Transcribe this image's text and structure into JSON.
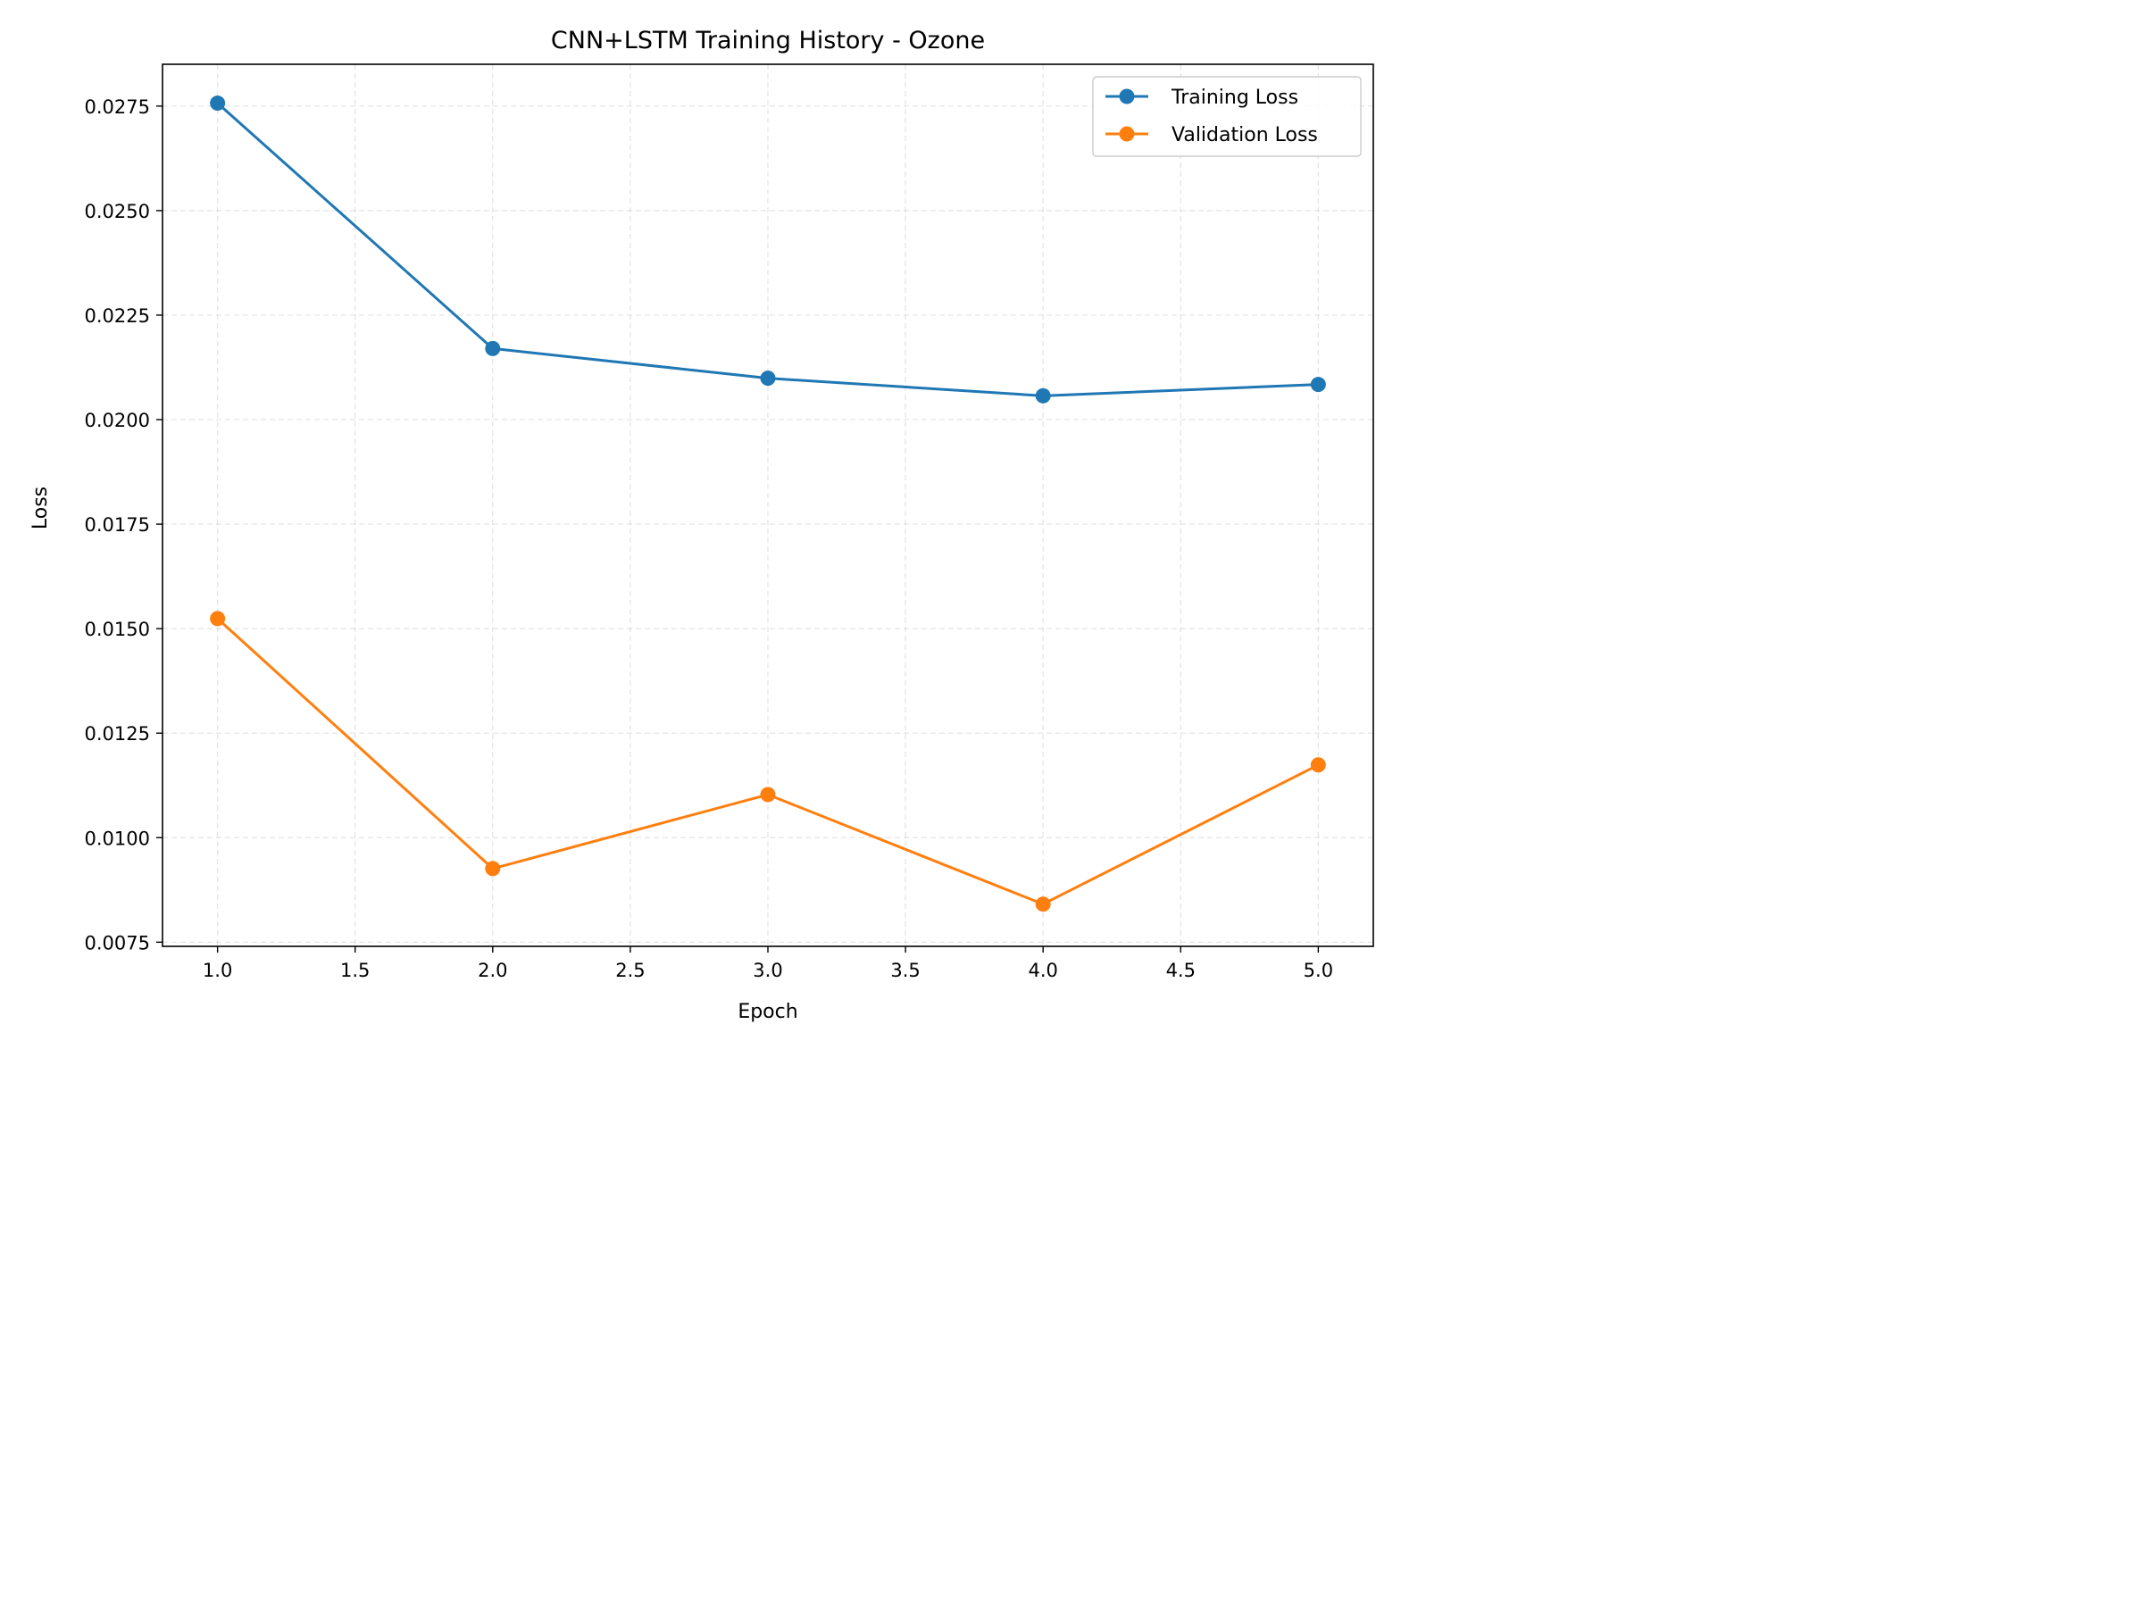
{
  "chart_data": {
    "type": "line",
    "title": "CNN+LSTM Training History - Ozone",
    "xlabel": "Epoch",
    "ylabel": "Loss",
    "x": [
      1,
      2,
      3,
      4,
      5
    ],
    "xlim": [
      0.8,
      5.2
    ],
    "ylim": [
      0.0074,
      0.0285
    ],
    "xticks": [
      1.0,
      1.5,
      2.0,
      2.5,
      3.0,
      3.5,
      4.0,
      4.5,
      5.0
    ],
    "xtick_labels": [
      "1.0",
      "1.5",
      "2.0",
      "2.5",
      "3.0",
      "3.5",
      "4.0",
      "4.5",
      "5.0"
    ],
    "yticks": [
      0.0075,
      0.01,
      0.0125,
      0.015,
      0.0175,
      0.02,
      0.0225,
      0.025,
      0.0275
    ],
    "ytick_labels": [
      "0.0075",
      "0.0100",
      "0.0125",
      "0.0150",
      "0.0175",
      "0.0200",
      "0.0225",
      "0.0250",
      "0.0275"
    ],
    "grid": true,
    "legend_position": "top-right",
    "series": [
      {
        "name": "Training Loss",
        "color": "#1f77b4",
        "marker": "circle",
        "values": [
          0.02757,
          0.0217,
          0.02099,
          0.02057,
          0.02084
        ]
      },
      {
        "name": "Validation Loss",
        "color": "#ff7f0e",
        "marker": "circle",
        "values": [
          0.01524,
          0.00926,
          0.01103,
          0.00841,
          0.01174
        ]
      }
    ]
  }
}
